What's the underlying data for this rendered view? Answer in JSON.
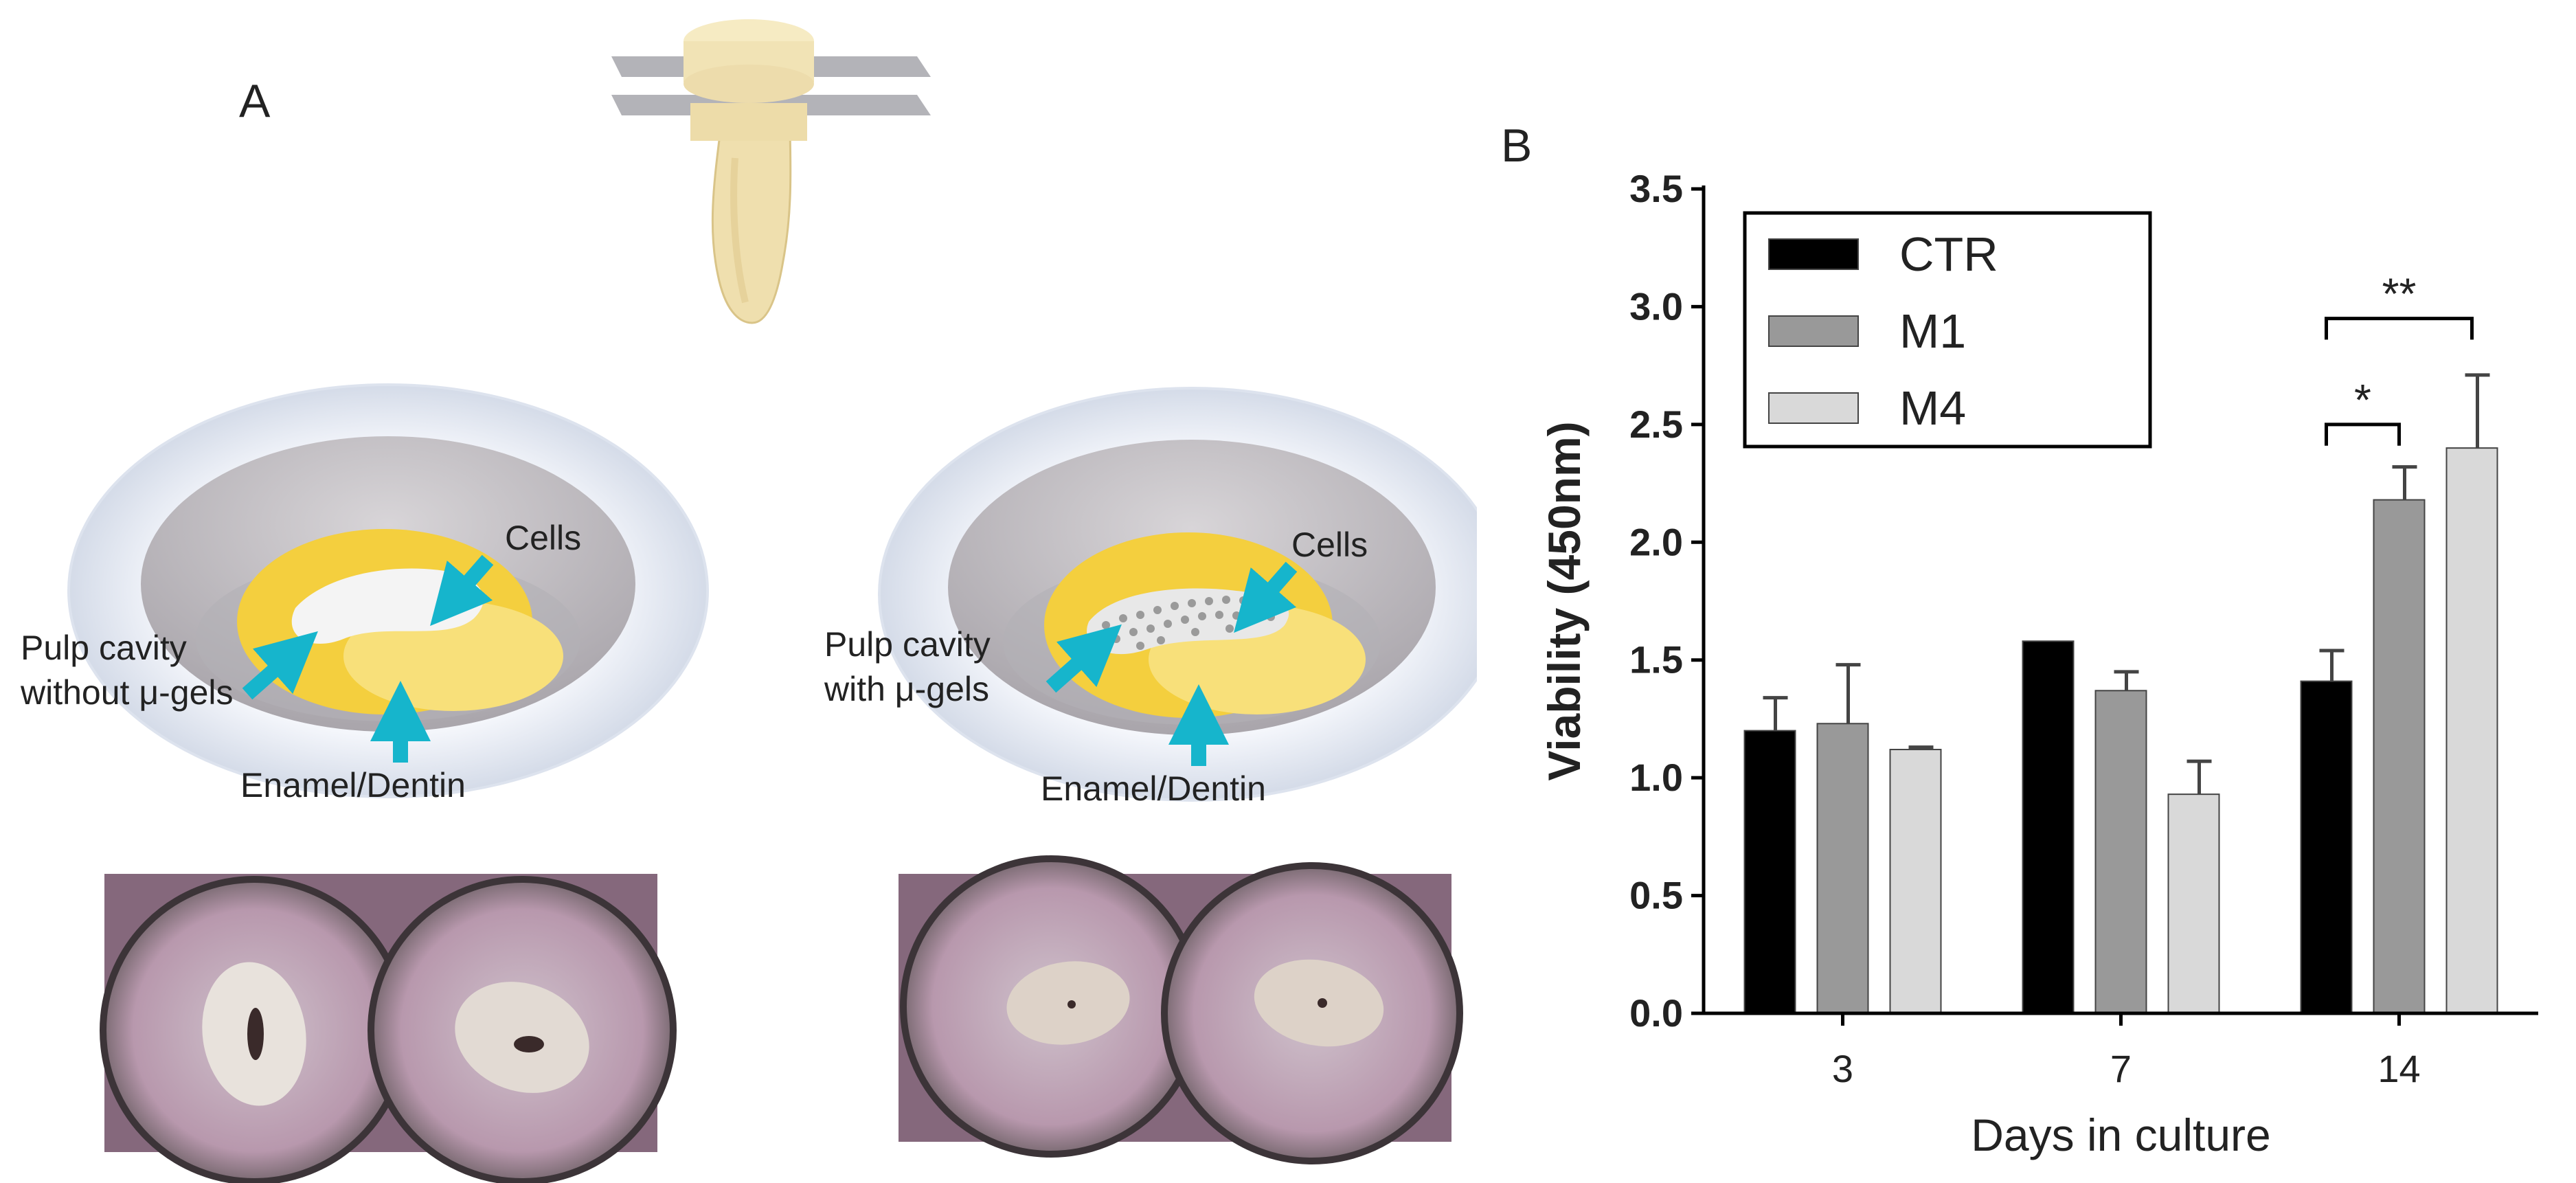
{
  "panel_a": {
    "letter": "A",
    "left_dish": {
      "cells_label": "Cells",
      "pulp_line1": "Pulp cavity",
      "pulp_line2": "without μ-gels",
      "enamel_label": "Enamel/Dentin"
    },
    "right_dish": {
      "cells_label": "Cells",
      "pulp_line1": "Pulp cavity",
      "pulp_line2": "with μ-gels",
      "enamel_label": "Enamel/Dentin"
    }
  },
  "panel_b": {
    "letter": "B"
  },
  "colors": {
    "tooth": "#efdfae",
    "pulp": "#f4cf3e",
    "arrow": "#16b5cc",
    "dish_rim": "#e6ebf4",
    "CTR": "#000000",
    "M1": "#999999",
    "M4": "#d9d9d9"
  },
  "chart_data": {
    "type": "bar",
    "xlabel": "Days in culture",
    "ylabel": "Viability (450nm)",
    "categories": [
      "3",
      "7",
      "14"
    ],
    "ylim": [
      0,
      3.5
    ],
    "yticks": [
      "0.0",
      "0.5",
      "1.0",
      "1.5",
      "2.0",
      "2.5",
      "3.0",
      "3.5"
    ],
    "legend_position": "top-left",
    "series": [
      {
        "name": "CTR",
        "color": "#000000",
        "values": [
          1.2,
          1.58,
          1.41
        ],
        "errors": [
          0.14,
          0.0,
          0.13
        ]
      },
      {
        "name": "M1",
        "color": "#999999",
        "values": [
          1.23,
          1.37,
          2.18
        ],
        "errors": [
          0.25,
          0.08,
          0.14
        ]
      },
      {
        "name": "M4",
        "color": "#d9d9d9",
        "values": [
          1.12,
          0.93,
          2.4
        ],
        "errors": [
          0.01,
          0.14,
          0.31
        ]
      }
    ],
    "significance": [
      {
        "label": "*",
        "category": "14",
        "from": "CTR",
        "to": "M1"
      },
      {
        "label": "**",
        "category": "14",
        "from": "CTR",
        "to": "M4"
      }
    ]
  }
}
